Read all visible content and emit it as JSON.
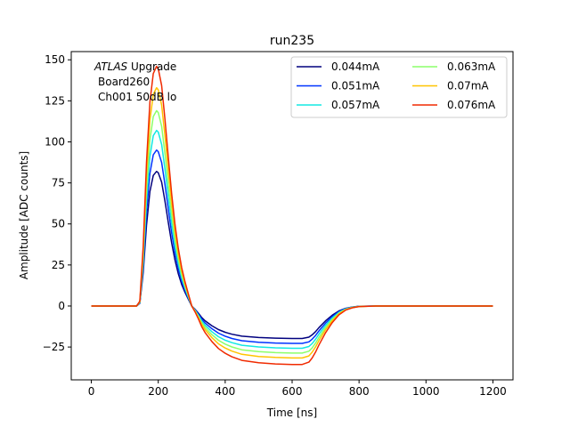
{
  "chart_data": {
    "type": "line",
    "title": "run235",
    "xlabel": "Time [ns]",
    "ylabel": "Amplitude [ADC counts]",
    "xlim": [
      -60,
      1260
    ],
    "ylim": [
      -45,
      155
    ],
    "xticks": [
      0,
      200,
      400,
      600,
      800,
      1000,
      1200
    ],
    "yticks": [
      -25,
      0,
      25,
      50,
      75,
      100,
      125,
      150
    ],
    "grid": false,
    "legend": {
      "placement": "top-right",
      "columns": 2
    },
    "annotation": {
      "line1_italic": "ATLAS",
      "line1_rest": " Upgrade",
      "line2": "Board260",
      "line3": "Ch001 50dB lo"
    },
    "series": [
      {
        "name": "0.044mA",
        "color": "#00007f",
        "peak": 82,
        "undershoot": -20
      },
      {
        "name": "0.051mA",
        "color": "#0033ff",
        "peak": 95,
        "undershoot": -23
      },
      {
        "name": "0.057mA",
        "color": "#13e8e3",
        "peak": 107,
        "undershoot": -26
      },
      {
        "name": "0.063mA",
        "color": "#8cff6a",
        "peak": 119,
        "undershoot": -29
      },
      {
        "name": "0.07mA",
        "color": "#ffc400",
        "peak": 133,
        "undershoot": -32
      },
      {
        "name": "0.076mA",
        "color": "#f02a00",
        "peak": 146,
        "undershoot": -36
      }
    ],
    "shape_x": [
      0,
      135,
      145,
      155,
      165,
      175,
      185,
      195,
      200,
      210,
      220,
      230,
      240,
      250,
      260,
      270,
      280,
      290,
      300,
      310,
      320,
      330,
      340,
      360,
      380,
      400,
      420,
      450,
      500,
      550,
      600,
      630,
      650,
      660,
      670,
      680,
      700,
      720,
      740,
      760,
      780,
      800,
      850,
      900,
      1000,
      1100,
      1200
    ],
    "shape_y": [
      0,
      0,
      0.02,
      0.25,
      0.6,
      0.85,
      0.97,
      1.0,
      0.99,
      0.92,
      0.78,
      0.62,
      0.47,
      0.34,
      0.24,
      0.16,
      0.1,
      0.05,
      0.0,
      -0.1,
      -0.22,
      -0.35,
      -0.45,
      -0.6,
      -0.72,
      -0.8,
      -0.86,
      -0.92,
      -0.96,
      -0.98,
      -0.99,
      -0.99,
      -0.95,
      -0.88,
      -0.78,
      -0.66,
      -0.45,
      -0.28,
      -0.15,
      -0.07,
      -0.03,
      -0.01,
      0,
      0,
      0,
      0,
      0
    ]
  }
}
